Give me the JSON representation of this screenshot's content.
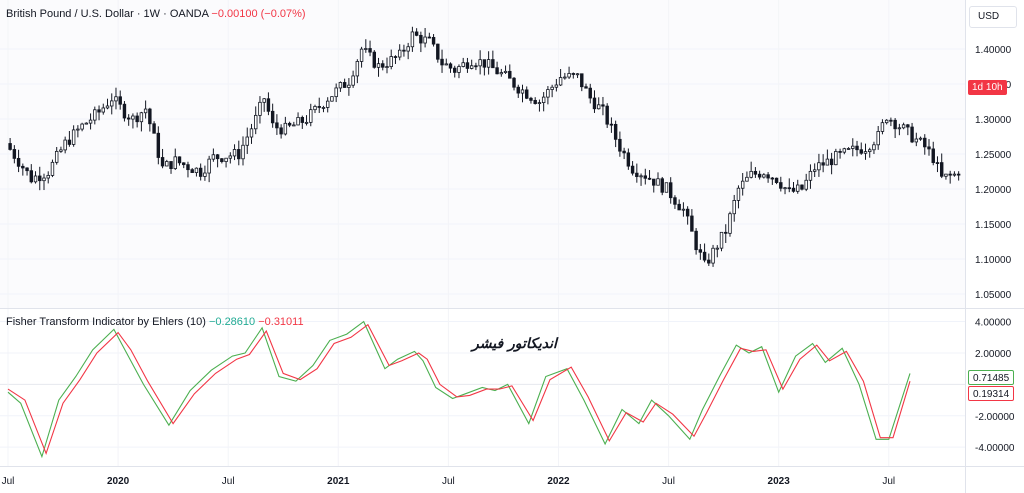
{
  "header": {
    "title": "British Pound / U.S. Dollar · 1W · OANDA",
    "change": "−0.00100 (−0.07%)"
  },
  "currency_button": "USD",
  "countdown_badge": "1d 10h",
  "indicator": {
    "title": "Fisher Transform Indicator by Ehlers (10)",
    "value_fisher": "−0.28610",
    "value_trigger": "−0.31011",
    "badge_fisher": "0.71485",
    "badge_trigger": "0.19314",
    "overlay_text": "اندیکاتور فیشر"
  },
  "colors": {
    "up": "#22ab94",
    "down": "#f23645",
    "candle_up_body": "#ffffff",
    "candle_down_body": "#131722",
    "wick": "#131722",
    "fisher_line": "#4caf50",
    "trigger_line": "#f23645",
    "badge_countdown_bg": "#f23645"
  },
  "chart_data": [
    {
      "type": "candlestick",
      "ylim": [
        1.03,
        1.47
      ],
      "y_ticks": [
        "1.40000",
        "1.35000",
        "1.30000",
        "1.25000",
        "1.20000",
        "1.15000",
        "1.10000",
        "1.05000"
      ],
      "y_tick_values": [
        1.4,
        1.35,
        1.3,
        1.25,
        1.2,
        1.15,
        1.1,
        1.05
      ],
      "x_ticks": [
        "Jul",
        "2020",
        "Jul",
        "2021",
        "Jul",
        "2022",
        "Jul",
        "2023",
        "Jul"
      ],
      "x_tick_weeks": [
        0,
        26,
        52,
        78,
        104,
        130,
        156,
        182,
        208
      ],
      "total_weeks": 226,
      "close_path": [
        [
          0,
          1.265
        ],
        [
          6,
          1.215
        ],
        [
          10,
          1.225
        ],
        [
          14,
          1.265
        ],
        [
          18,
          1.29
        ],
        [
          22,
          1.31
        ],
        [
          25,
          1.33
        ],
        [
          28,
          1.31
        ],
        [
          30,
          1.3
        ],
        [
          33,
          1.315
        ],
        [
          37,
          1.23
        ],
        [
          40,
          1.24
        ],
        [
          46,
          1.225
        ],
        [
          49,
          1.245
        ],
        [
          55,
          1.25
        ],
        [
          59,
          1.3
        ],
        [
          61,
          1.33
        ],
        [
          63,
          1.29
        ],
        [
          66,
          1.285
        ],
        [
          71,
          1.3
        ],
        [
          76,
          1.33
        ],
        [
          81,
          1.355
        ],
        [
          84,
          1.4
        ],
        [
          88,
          1.375
        ],
        [
          93,
          1.39
        ],
        [
          96,
          1.42
        ],
        [
          100,
          1.41
        ],
        [
          103,
          1.38
        ],
        [
          106,
          1.37
        ],
        [
          110,
          1.385
        ],
        [
          113,
          1.38
        ],
        [
          118,
          1.36
        ],
        [
          121,
          1.345
        ],
        [
          126,
          1.325
        ],
        [
          131,
          1.36
        ],
        [
          135,
          1.36
        ],
        [
          138,
          1.33
        ],
        [
          141,
          1.31
        ],
        [
          145,
          1.26
        ],
        [
          148,
          1.23
        ],
        [
          151,
          1.22
        ],
        [
          156,
          1.2
        ],
        [
          160,
          1.17
        ],
        [
          163,
          1.12
        ],
        [
          165,
          1.09
        ],
        [
          167,
          1.11
        ],
        [
          170,
          1.14
        ],
        [
          173,
          1.2
        ],
        [
          176,
          1.22
        ],
        [
          179,
          1.225
        ],
        [
          182,
          1.215
        ],
        [
          185,
          1.195
        ],
        [
          188,
          1.2
        ],
        [
          191,
          1.23
        ],
        [
          196,
          1.245
        ],
        [
          200,
          1.255
        ],
        [
          203,
          1.26
        ],
        [
          206,
          1.275
        ],
        [
          208,
          1.305
        ],
        [
          211,
          1.29
        ],
        [
          214,
          1.275
        ],
        [
          217,
          1.26
        ],
        [
          219,
          1.245
        ],
        [
          221,
          1.215
        ],
        [
          224,
          1.22
        ],
        [
          226,
          1.235
        ],
        [
          228,
          1.265
        ]
      ]
    },
    {
      "type": "line",
      "ylim": [
        -5.2,
        4.8
      ],
      "y_ticks": [
        "4.00000",
        "2.00000",
        "-2.00000",
        "-4.00000"
      ],
      "y_tick_values": [
        4,
        2,
        -2,
        -4
      ],
      "series": [
        {
          "name": "Fisher",
          "points": [
            [
              0,
              -0.5
            ],
            [
              3,
              -1.2
            ],
            [
              8,
              -4.6
            ],
            [
              12,
              -1.0
            ],
            [
              16,
              0.5
            ],
            [
              20,
              2.2
            ],
            [
              25,
              3.5
            ],
            [
              28,
              2.0
            ],
            [
              32,
              0.0
            ],
            [
              38,
              -2.6
            ],
            [
              43,
              -0.4
            ],
            [
              48,
              0.9
            ],
            [
              53,
              1.8
            ],
            [
              56,
              2.0
            ],
            [
              60,
              3.6
            ],
            [
              64,
              0.5
            ],
            [
              68,
              0.2
            ],
            [
              72,
              1.2
            ],
            [
              76,
              2.8
            ],
            [
              80,
              3.2
            ],
            [
              84,
              4.0
            ],
            [
              89,
              1.0
            ],
            [
              92,
              1.6
            ],
            [
              96,
              2.1
            ],
            [
              98,
              1.5
            ],
            [
              101,
              -0.2
            ],
            [
              105,
              -0.9
            ],
            [
              108,
              -0.6
            ],
            [
              112,
              -0.2
            ],
            [
              115,
              -0.4
            ],
            [
              118,
              0.0
            ],
            [
              123,
              -2.5
            ],
            [
              127,
              0.5
            ],
            [
              132,
              1.0
            ],
            [
              136,
              -1.0
            ],
            [
              141,
              -3.8
            ],
            [
              145,
              -1.6
            ],
            [
              149,
              -2.5
            ],
            [
              152,
              -1.0
            ],
            [
              156,
              -2.0
            ],
            [
              161,
              -3.5
            ],
            [
              164,
              -1.6
            ],
            [
              168,
              0.5
            ],
            [
              172,
              2.5
            ],
            [
              175,
              2.0
            ],
            [
              178,
              2.4
            ],
            [
              182,
              -0.5
            ],
            [
              186,
              1.8
            ],
            [
              190,
              2.6
            ],
            [
              193,
              1.4
            ],
            [
              197,
              2.3
            ],
            [
              201,
              0.0
            ],
            [
              205,
              -3.5
            ],
            [
              208,
              -3.5
            ],
            [
              213,
              0.7
            ]
          ]
        },
        {
          "name": "Trigger",
          "points": [
            [
              0,
              -0.3
            ],
            [
              4,
              -1.0
            ],
            [
              9,
              -4.4
            ],
            [
              13,
              -1.2
            ],
            [
              17,
              0.3
            ],
            [
              21,
              2.0
            ],
            [
              26,
              3.3
            ],
            [
              29,
              2.2
            ],
            [
              33,
              0.2
            ],
            [
              39,
              -2.5
            ],
            [
              44,
              -0.6
            ],
            [
              49,
              0.7
            ],
            [
              54,
              1.6
            ],
            [
              57,
              1.9
            ],
            [
              61,
              3.4
            ],
            [
              65,
              0.7
            ],
            [
              69,
              0.3
            ],
            [
              73,
              1.0
            ],
            [
              77,
              2.6
            ],
            [
              81,
              3.0
            ],
            [
              85,
              3.8
            ],
            [
              90,
              1.2
            ],
            [
              93,
              1.5
            ],
            [
              97,
              2.0
            ],
            [
              99,
              1.6
            ],
            [
              102,
              0.0
            ],
            [
              106,
              -0.8
            ],
            [
              109,
              -0.7
            ],
            [
              113,
              -0.3
            ],
            [
              116,
              -0.3
            ],
            [
              119,
              -0.1
            ],
            [
              124,
              -2.3
            ],
            [
              128,
              0.3
            ],
            [
              133,
              1.1
            ],
            [
              137,
              -0.8
            ],
            [
              142,
              -3.6
            ],
            [
              146,
              -1.8
            ],
            [
              150,
              -2.4
            ],
            [
              153,
              -1.2
            ],
            [
              157,
              -1.9
            ],
            [
              162,
              -3.3
            ],
            [
              165,
              -1.8
            ],
            [
              169,
              0.3
            ],
            [
              173,
              2.3
            ],
            [
              176,
              2.1
            ],
            [
              179,
              2.2
            ],
            [
              183,
              -0.3
            ],
            [
              187,
              1.6
            ],
            [
              191,
              2.5
            ],
            [
              194,
              1.5
            ],
            [
              198,
              2.1
            ],
            [
              202,
              0.2
            ],
            [
              206,
              -3.4
            ],
            [
              209,
              -3.4
            ],
            [
              213,
              0.2
            ]
          ]
        }
      ]
    }
  ]
}
